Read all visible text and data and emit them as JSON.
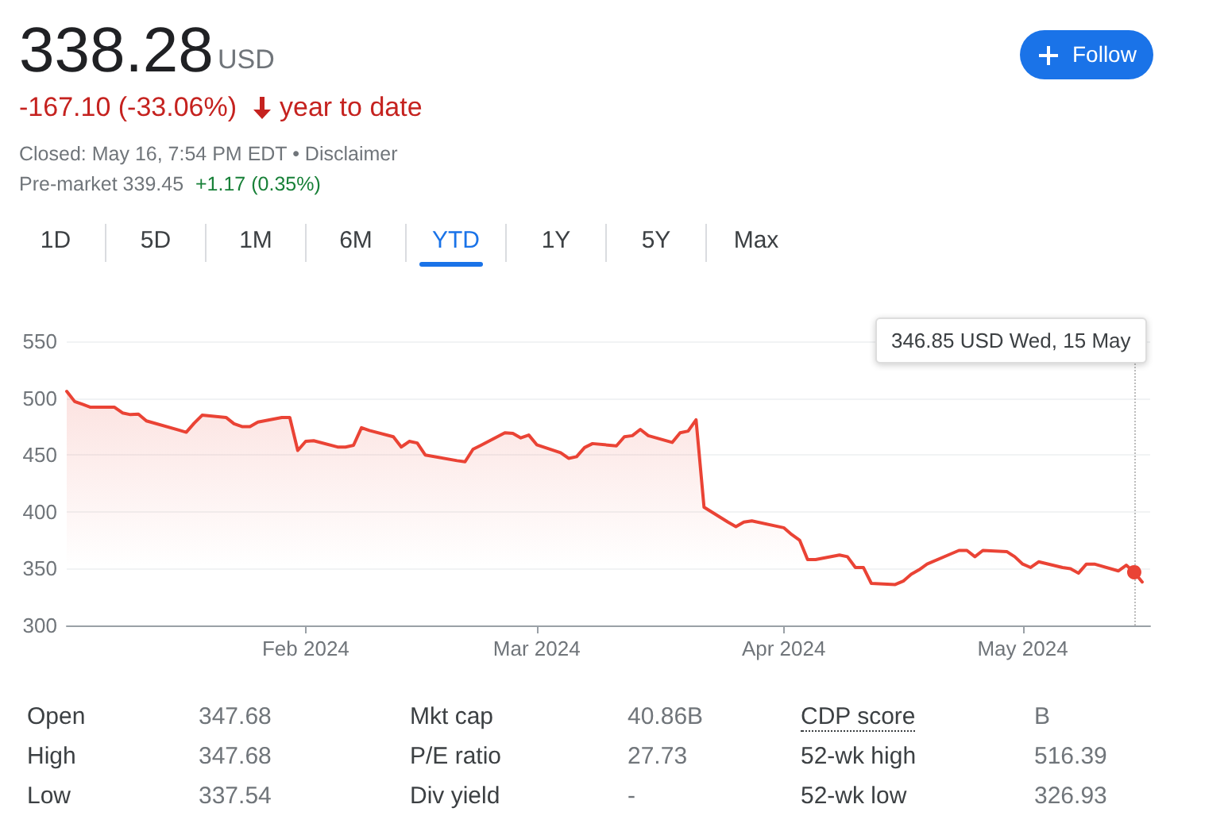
{
  "chart_data": {
    "type": "area",
    "title": "338.28",
    "annotations": [
      "USD",
      "-167.10 (-33.06%)",
      "year to date",
      "Closed: May 16, 7:54 PM EDT • Disclaimer",
      "Pre-market 339.45",
      "+1.17 (0.35%)",
      "Follow",
      "1D",
      "5D",
      "1M",
      "6M",
      "YTD",
      "1Y",
      "5Y",
      "Max",
      "Open",
      "347.68",
      "Mkt cap",
      "40.86B",
      "CDP score",
      "B",
      "High",
      "347.68",
      "P/E ratio",
      "27.73",
      "52-wk high",
      "516.39",
      "Low",
      "337.54",
      "Div yield",
      "-",
      "52-wk low",
      "326.93",
      "346.85 USD  Wed, 15 May"
    ],
    "x": [
      "2024-01-02",
      "2024-01-03",
      "2024-01-04",
      "2024-01-05",
      "2024-01-08",
      "2024-01-09",
      "2024-01-10",
      "2024-01-11",
      "2024-01-12",
      "2024-01-16",
      "2024-01-17",
      "2024-01-18",
      "2024-01-19",
      "2024-01-22",
      "2024-01-23",
      "2024-01-24",
      "2024-01-25",
      "2024-01-26",
      "2024-01-29",
      "2024-01-30",
      "2024-01-31",
      "2024-02-01",
      "2024-02-02",
      "2024-02-05",
      "2024-02-06",
      "2024-02-07",
      "2024-02-08",
      "2024-02-09",
      "2024-02-12",
      "2024-02-13",
      "2024-02-14",
      "2024-02-15",
      "2024-02-16",
      "2024-02-20",
      "2024-02-21",
      "2024-02-22",
      "2024-02-23",
      "2024-02-26",
      "2024-02-27",
      "2024-02-28",
      "2024-02-29",
      "2024-03-01",
      "2024-03-04",
      "2024-03-05",
      "2024-03-06",
      "2024-03-07",
      "2024-03-08",
      "2024-03-11",
      "2024-03-12",
      "2024-03-13",
      "2024-03-14",
      "2024-03-15",
      "2024-03-18",
      "2024-03-19",
      "2024-03-20",
      "2024-03-21",
      "2024-03-22",
      "2024-03-25",
      "2024-03-26",
      "2024-03-27",
      "2024-03-28",
      "2024-04-01",
      "2024-04-02",
      "2024-04-03",
      "2024-04-04",
      "2024-04-05",
      "2024-04-08",
      "2024-04-09",
      "2024-04-10",
      "2024-04-11",
      "2024-04-12",
      "2024-04-15",
      "2024-04-16",
      "2024-04-17",
      "2024-04-18",
      "2024-04-19",
      "2024-04-22",
      "2024-04-23",
      "2024-04-24",
      "2024-04-25",
      "2024-04-26",
      "2024-04-29",
      "2024-04-30",
      "2024-05-01",
      "2024-05-02",
      "2024-05-03",
      "2024-05-06",
      "2024-05-07",
      "2024-05-08",
      "2024-05-09",
      "2024-05-10",
      "2024-05-13",
      "2024-05-14",
      "2024-05-15",
      "2024-05-16"
    ],
    "series": [
      {
        "color": "#ea4335",
        "values": [
          506,
          497,
          494.5,
          492,
          492,
          487,
          485.5,
          486,
          480,
          472,
          470,
          478,
          485,
          483,
          477.5,
          475,
          475,
          479,
          483,
          483,
          454,
          462,
          462.5,
          457,
          457,
          458.5,
          474,
          471.5,
          466,
          457,
          462,
          460.5,
          450,
          445,
          444,
          455,
          458.5,
          469.5,
          469,
          465,
          467.5,
          459,
          452,
          447,
          448.5,
          456.5,
          460,
          458,
          466,
          467,
          472.5,
          467,
          461,
          469.5,
          471,
          481,
          404,
          391,
          387,
          391,
          392,
          386,
          380,
          375,
          358,
          358,
          362,
          360.5,
          351,
          351,
          337,
          336,
          339,
          345,
          349,
          354,
          363,
          366,
          366,
          360.5,
          366,
          365,
          360.5,
          354,
          351,
          356,
          351,
          350,
          346,
          354,
          354,
          348,
          353,
          346.85,
          338.28
        ]
      }
    ],
    "xlim": [
      "2024-01-02",
      "2024-05-17"
    ],
    "xticks": [
      {
        "value": "2024-02-01",
        "label": "Feb 2024"
      },
      {
        "value": "2024-03-01",
        "label": "Mar 2024"
      },
      {
        "value": "2024-04-01",
        "label": "Apr 2024"
      },
      {
        "value": "2024-05-01",
        "label": "May 2024"
      }
    ],
    "ylim": [
      300,
      550
    ],
    "yticks": [
      300,
      350,
      400,
      450,
      500,
      550
    ],
    "grid": "y",
    "marker": "none",
    "line_style": "solid",
    "ref_lines": [
      {
        "axis": "x",
        "value": "2024-05-15",
        "color": "#bdbdbd",
        "line_style": "dotted"
      }
    ]
  }
}
